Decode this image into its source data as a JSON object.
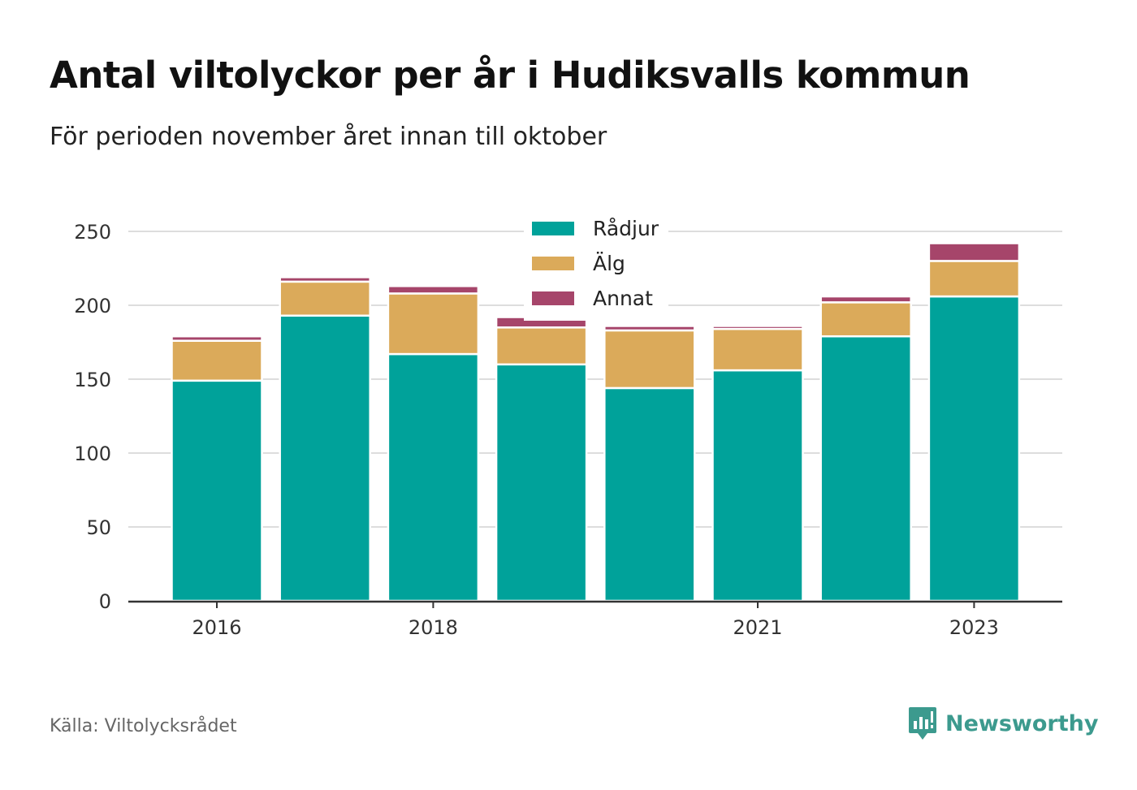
{
  "title": "Antal viltolyckor per år i Hudiksvalls kommun",
  "subtitle": "För perioden november året innan till oktober",
  "source": "Källa: Viltolycksrådet",
  "brand": "Newsworthy",
  "colors": {
    "radjur": "#00a29a",
    "alg": "#dbaa5a",
    "annat": "#a6456a",
    "grid": "#dddddd",
    "axis": "#333333",
    "brand": "#3c9a8e"
  },
  "chart_data": {
    "type": "bar",
    "stacked": true,
    "categories": [
      "2016",
      "2017",
      "2018",
      "2019",
      "2020",
      "2021",
      "2022",
      "2023"
    ],
    "x_tick_labels": [
      "2016",
      "",
      "2018",
      "",
      "",
      "2021",
      "",
      "2023"
    ],
    "series": [
      {
        "name": "Rådjur",
        "values": [
          149,
          193,
          167,
          160,
          144,
          156,
          179,
          206
        ]
      },
      {
        "name": "Älg",
        "values": [
          27,
          23,
          41,
          25,
          39,
          28,
          23,
          24
        ]
      },
      {
        "name": "Annat",
        "values": [
          3,
          3,
          5,
          7,
          3,
          2,
          4,
          12
        ]
      }
    ],
    "ylim": [
      0,
      250
    ],
    "yticks": [
      0,
      50,
      100,
      150,
      200,
      250
    ],
    "grid": true,
    "legend_position": "top-center"
  }
}
